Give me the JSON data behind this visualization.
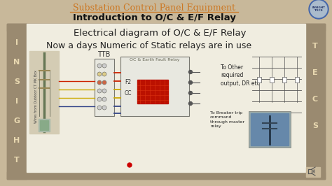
{
  "bg_color": "#c8b89a",
  "title_text": "Substation Control Panel Equipment",
  "subtitle_text": "Introduction to O/C & E/F Relay",
  "title_color": "#cc7722",
  "subtitle_color": "#111111",
  "text1": "Electrical diagram of O/C & E/F Relay",
  "text2": "Now a days Numeric of Static relays are in use",
  "text_color": "#222222",
  "left_letters": [
    "I",
    "N",
    "S",
    "I",
    "G",
    "H",
    "T"
  ],
  "right_letters": [
    "T",
    "E",
    "C",
    "S"
  ],
  "letter_color": "#e8d8b0",
  "frame_color": "#9a8a70",
  "inner_bg": "#f0ede0",
  "ttb_label": "TTB",
  "relay_label": "OC & Earth Fault Relay",
  "to_other_text": "To Other\nrequired\noutput, DR etc",
  "f2_label": "F2",
  "cc_label": "CC",
  "breaker_text": "To Breaker trip\ncommand\nthrough master\nrelay",
  "wires_text": "Wires from Outdoor CT MK Box",
  "dot_color": "#cc0000",
  "red_wire": "#cc2200",
  "yellow_wire": "#ccaa00",
  "blue_wire": "#334488"
}
